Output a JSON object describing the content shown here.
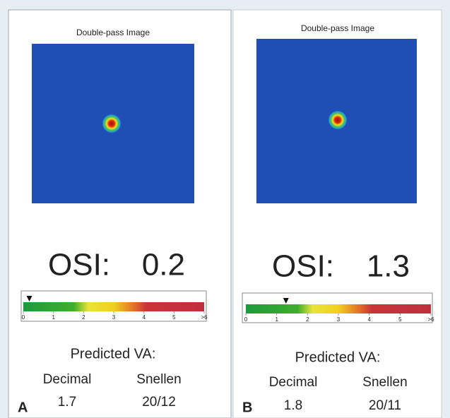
{
  "panels": [
    {
      "label": "A",
      "image_title": "Double-pass Image",
      "osi_label": "OSI:",
      "osi": 0.2,
      "scale": {
        "xlim": [
          0,
          6
        ],
        "ticks": [
          0,
          1,
          2,
          3,
          4,
          5,
          {
            "value": 6,
            "label": ">6"
          }
        ]
      },
      "predicted_title": "Predicted VA:",
      "decimal_label": "Decimal",
      "snellen_label": "Snellen",
      "decimal": 1.7,
      "snellen": "20/12"
    },
    {
      "label": "B",
      "image_title": "Double-pass Image",
      "osi_label": "OSI:",
      "osi": 1.3,
      "scale": {
        "xlim": [
          0,
          6
        ],
        "ticks": [
          0,
          1,
          2,
          3,
          4,
          5,
          {
            "value": 6,
            "label": ">6"
          }
        ]
      },
      "predicted_title": "Predicted VA:",
      "decimal_label": "Decimal",
      "snellen_label": "Snellen",
      "decimal": 1.8,
      "snellen": "20/11"
    }
  ]
}
